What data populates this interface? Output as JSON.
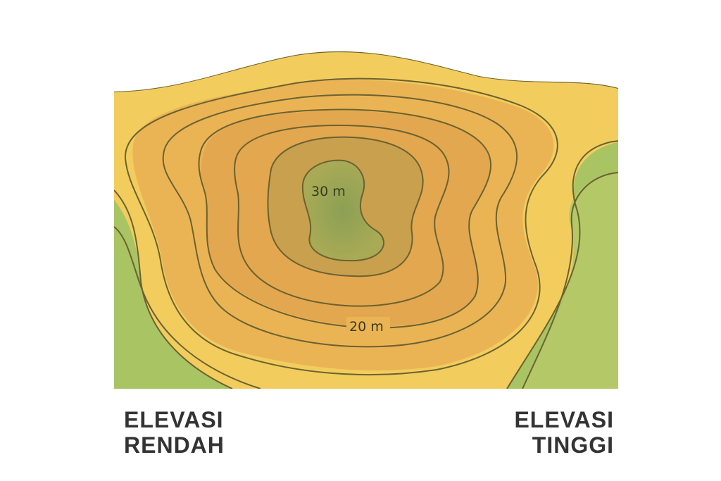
{
  "map": {
    "contour_labels": {
      "inner": "30 m",
      "outer": "20 m"
    },
    "colors": {
      "low_green": "#a9c463",
      "yellow": "#f2cd5e",
      "orange": "#e6a94f",
      "peak_green": "#8fa55a",
      "contour_line": "#6b6230"
    },
    "contour_count": 9
  },
  "legend": {
    "low": {
      "line1": "ELEVASI",
      "line2": "RENDAH"
    },
    "high": {
      "line1": "ELEVASI",
      "line2": "TINGGI"
    }
  }
}
